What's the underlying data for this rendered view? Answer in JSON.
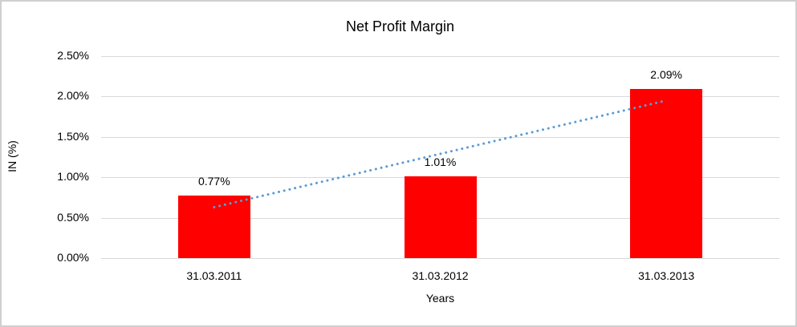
{
  "chart_data": {
    "type": "bar",
    "title": "Net Profit Margin",
    "xlabel": "Years",
    "ylabel": "IN (%)",
    "categories": [
      "31.03.2011",
      "31.03.2012",
      "31.03.2013"
    ],
    "values": [
      0.77,
      1.01,
      2.09
    ],
    "data_labels": [
      "0.77%",
      "1.01%",
      "2.09%"
    ],
    "y_tick_labels": [
      "0.00%",
      "0.50%",
      "1.00%",
      "1.50%",
      "2.00%",
      "2.50%"
    ],
    "y_tick_values": [
      0,
      0.5,
      1.0,
      1.5,
      2.0,
      2.5
    ],
    "ylim": [
      0,
      2.5
    ],
    "grid": true,
    "legend": "none",
    "bar_color": "#FF0000",
    "gridline_color": "#D9D9D9",
    "text_color": "#000000",
    "trendline": {
      "type": "linear",
      "style": "dotted",
      "color": "#5B9BD5",
      "start_value": 0.63,
      "end_value": 1.95,
      "spans_categories": [
        "31.03.2011",
        "31.03.2013"
      ]
    }
  }
}
